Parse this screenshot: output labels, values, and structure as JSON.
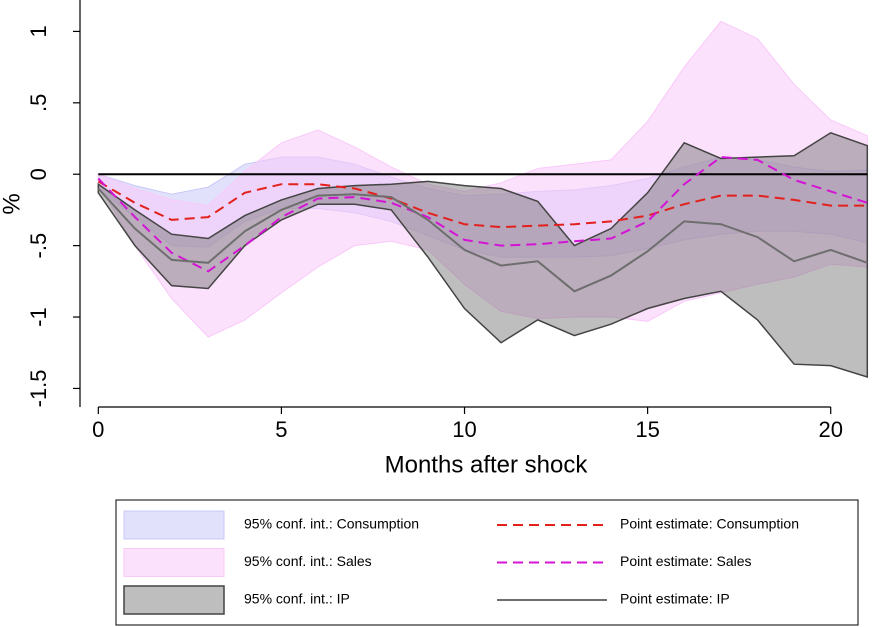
{
  "chart_data": {
    "type": "line",
    "x_label": "Months after shock",
    "y_label": "%",
    "x": [
      0,
      1,
      2,
      3,
      4,
      5,
      6,
      7,
      8,
      9,
      10,
      11,
      12,
      13,
      14,
      15,
      16,
      17,
      18,
      19,
      20,
      21
    ],
    "xlim": [
      -0.5,
      21.1
    ],
    "ylim": [
      -1.63,
      1.22
    ],
    "xticks": [
      0,
      5,
      10,
      15,
      20
    ],
    "yticks": [
      1,
      {
        "value": 0.5,
        "label": ".5"
      },
      0,
      {
        "value": -0.5,
        "label": "-.5"
      },
      -1,
      -1.5
    ],
    "hline": 0,
    "series": [
      {
        "name": "95% conf. int.: Consumption",
        "kind": "band",
        "color": "#c9c9f7",
        "upper": [
          0,
          -0.08,
          -0.14,
          -0.09,
          0.07,
          0.12,
          0.12,
          0.07,
          -0.02,
          -0.1,
          -0.15,
          -0.14,
          -0.12,
          -0.11,
          -0.08,
          -0.03,
          0.05,
          0.12,
          0.1,
          0.05,
          0.02,
          0.03
        ],
        "lower": [
          -0.1,
          -0.3,
          -0.5,
          -0.51,
          -0.33,
          -0.24,
          -0.24,
          -0.27,
          -0.33,
          -0.43,
          -0.53,
          -0.58,
          -0.58,
          -0.58,
          -0.57,
          -0.52,
          -0.46,
          -0.42,
          -0.4,
          -0.4,
          -0.42,
          -0.48
        ]
      },
      {
        "name": "Point estimate: Consumption",
        "kind": "line",
        "color": "#e3201c",
        "dash": true,
        "values": [
          -0.05,
          -0.2,
          -0.32,
          -0.3,
          -0.13,
          -0.07,
          -0.07,
          -0.1,
          -0.17,
          -0.27,
          -0.35,
          -0.37,
          -0.36,
          -0.35,
          -0.33,
          -0.29,
          -0.21,
          -0.15,
          -0.15,
          -0.18,
          -0.22,
          -0.22
        ]
      },
      {
        "name": "95% conf. int.: Sales",
        "kind": "band",
        "color": "#f9c9f9",
        "upper": [
          0,
          -0.1,
          -0.18,
          -0.22,
          0.02,
          0.22,
          0.31,
          0.19,
          0.05,
          -0.07,
          -0.12,
          -0.06,
          0.04,
          0.07,
          0.1,
          0.37,
          0.75,
          1.07,
          0.95,
          0.63,
          0.38,
          0.27
        ],
        "lower": [
          -0.07,
          -0.5,
          -0.87,
          -1.14,
          -1.02,
          -0.83,
          -0.65,
          -0.5,
          -0.47,
          -0.53,
          -0.77,
          -0.96,
          -1.01,
          -1.0,
          -1.0,
          -1.03,
          -0.89,
          -0.83,
          -0.77,
          -0.72,
          -0.63,
          -0.65
        ]
      },
      {
        "name": "Point estimate: Sales",
        "kind": "line",
        "color": "#d414d4",
        "dash": true,
        "values": [
          -0.03,
          -0.3,
          -0.55,
          -0.68,
          -0.5,
          -0.3,
          -0.17,
          -0.16,
          -0.2,
          -0.3,
          -0.46,
          -0.5,
          -0.49,
          -0.47,
          -0.45,
          -0.33,
          -0.07,
          0.12,
          0.1,
          -0.04,
          -0.12,
          -0.2
        ]
      },
      {
        "name": "95% conf. int.: IP",
        "kind": "band",
        "color": "#6e6e6e",
        "upper": [
          -0.07,
          -0.25,
          -0.42,
          -0.45,
          -0.29,
          -0.18,
          -0.1,
          -0.08,
          -0.07,
          -0.05,
          -0.08,
          -0.1,
          -0.19,
          -0.5,
          -0.38,
          -0.13,
          0.22,
          0.11,
          0.12,
          0.13,
          0.29,
          0.2
        ],
        "lower": [
          -0.13,
          -0.5,
          -0.78,
          -0.8,
          -0.5,
          -0.32,
          -0.21,
          -0.21,
          -0.25,
          -0.58,
          -0.94,
          -1.18,
          -1.02,
          -1.13,
          -1.05,
          -0.94,
          -0.87,
          -0.82,
          -1.02,
          -1.33,
          -1.34,
          -1.42
        ]
      },
      {
        "name": "Point estimate: IP",
        "kind": "line",
        "color": "#6e6e6e",
        "dash": false,
        "values": [
          -0.1,
          -0.38,
          -0.6,
          -0.62,
          -0.4,
          -0.25,
          -0.15,
          -0.14,
          -0.16,
          -0.32,
          -0.53,
          -0.64,
          -0.61,
          -0.82,
          -0.71,
          -0.54,
          -0.33,
          -0.35,
          -0.44,
          -0.61,
          -0.53,
          -0.62
        ]
      }
    ]
  }
}
